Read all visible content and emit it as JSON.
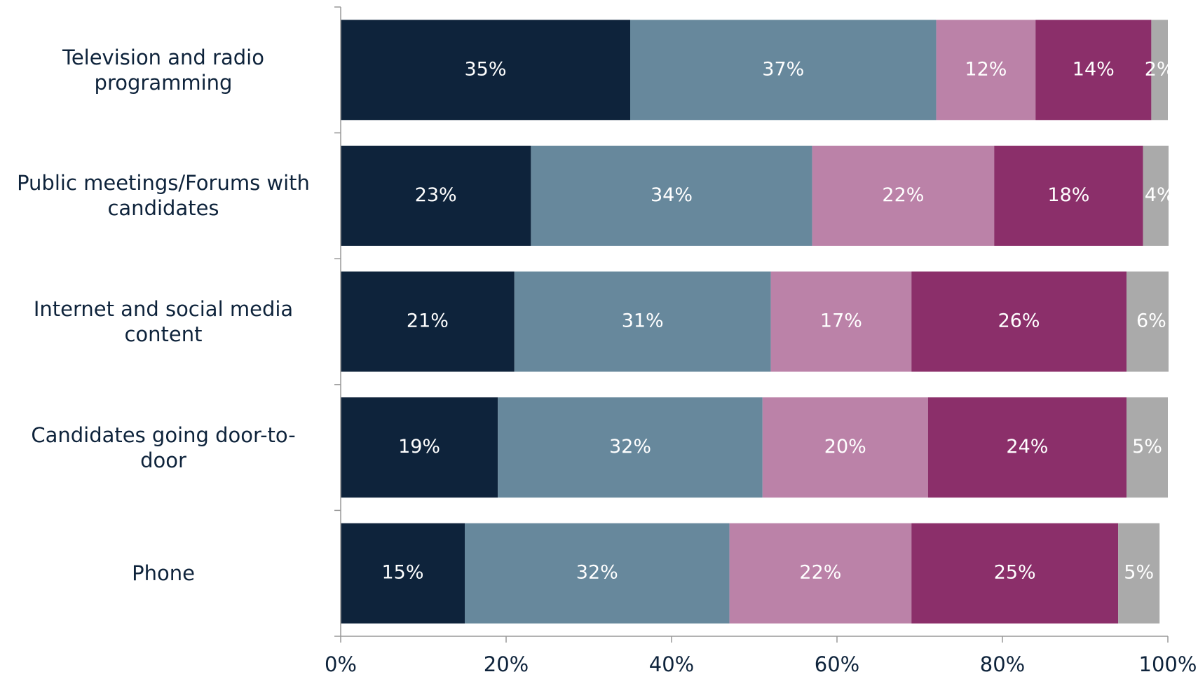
{
  "chart_data": {
    "type": "stacked-bar-horizontal",
    "categories": [
      "Television and radio programming",
      "Public meetings/Forums with candidates",
      "Internet and social media content",
      "Candidates going door-to-door",
      "Phone"
    ],
    "series": [
      {
        "color": "#0e233b",
        "values": [
          35,
          23,
          21,
          19,
          15
        ],
        "value_labels": [
          "35%",
          "23%",
          "21%",
          "19%",
          "15%"
        ]
      },
      {
        "color": "#67889c",
        "values": [
          37,
          34,
          31,
          32,
          32
        ],
        "value_labels": [
          "37%",
          "34%",
          "31%",
          "32%",
          "32%"
        ]
      },
      {
        "color": "#bb82a8",
        "values": [
          12,
          22,
          17,
          20,
          22
        ],
        "value_labels": [
          "12%",
          "22%",
          "17%",
          "20%",
          "22%"
        ]
      },
      {
        "color": "#8b2f6a",
        "values": [
          14,
          18,
          26,
          24,
          25
        ],
        "value_labels": [
          "14%",
          "18%",
          "26%",
          "24%",
          "25%"
        ]
      },
      {
        "color": "#aaaaaa",
        "values": [
          2,
          4,
          6,
          5,
          5
        ],
        "value_labels": [
          "2%",
          "4%",
          "6%",
          "5%",
          "5%"
        ]
      }
    ],
    "xlim": [
      0,
      100
    ],
    "xticks": [
      {
        "value": 0,
        "label": "0%"
      },
      {
        "value": 20,
        "label": "20%"
      },
      {
        "value": 40,
        "label": "40%"
      },
      {
        "value": 60,
        "label": "60%"
      },
      {
        "value": 80,
        "label": "80%"
      },
      {
        "value": 100,
        "label": "100%"
      }
    ]
  }
}
